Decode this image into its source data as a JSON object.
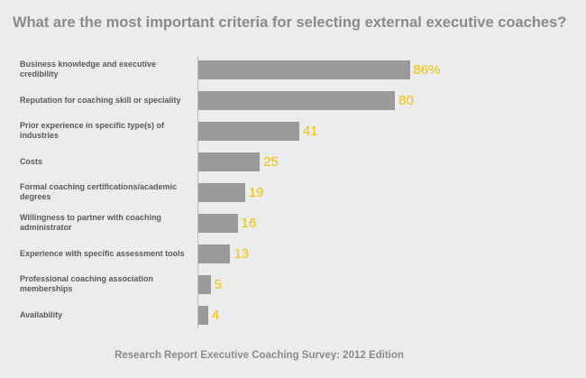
{
  "chart_data": {
    "type": "bar",
    "orientation": "horizontal",
    "title": "What are the most important criteria for selecting external executive coaches?",
    "categories": [
      "Business knowledge and executive credibility",
      "Reputation for coaching skill or speciality",
      "Prior experience in specific type(s) of industries",
      "Costs",
      "Formal coaching certifications/academic degrees",
      "Willingness to partner with coaching administrator",
      "Experience with specific assessment tools",
      "Professional coaching association memberships",
      "Availability"
    ],
    "values": [
      86,
      80,
      41,
      25,
      19,
      16,
      13,
      5,
      4
    ],
    "value_labels": [
      "86%",
      "80",
      "41",
      "25",
      "19",
      "16",
      "13",
      "5",
      "4"
    ],
    "color": "#9a9a9a",
    "label_color": "#f2c200",
    "xlim": [
      0,
      88
    ],
    "source": "Research Report Executive Coaching Survey: 2012 Edition"
  }
}
